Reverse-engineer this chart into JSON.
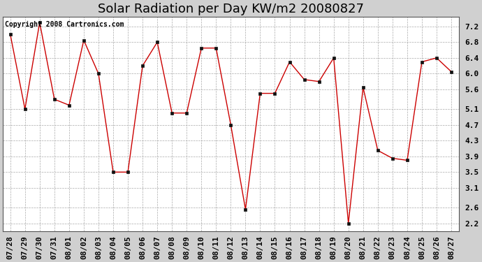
{
  "title": "Solar Radiation per Day KW/m2 20080827",
  "copyright": "Copyright 2008 Cartronics.com",
  "dates": [
    "07/28",
    "07/29",
    "07/30",
    "07/31",
    "08/01",
    "08/02",
    "08/03",
    "08/04",
    "08/05",
    "08/06",
    "08/07",
    "08/08",
    "08/09",
    "08/10",
    "08/11",
    "08/12",
    "08/13",
    "08/14",
    "08/15",
    "08/16",
    "08/17",
    "08/18",
    "08/19",
    "08/20",
    "08/21",
    "08/22",
    "08/23",
    "08/24",
    "08/25",
    "08/26",
    "08/27"
  ],
  "values": [
    7.0,
    5.1,
    7.3,
    5.35,
    5.2,
    6.85,
    6.0,
    3.5,
    3.5,
    6.2,
    6.8,
    5.0,
    5.0,
    6.65,
    6.65,
    4.7,
    2.55,
    5.5,
    5.5,
    6.3,
    5.85,
    5.8,
    6.4,
    2.2,
    5.65,
    4.05,
    3.85,
    3.8,
    6.3,
    6.4,
    6.05
  ],
  "line_color": "#cc0000",
  "marker": "s",
  "marker_size": 2.5,
  "bg_color": "#d0d0d0",
  "plot_bg_color": "#ffffff",
  "grid_color": "#aaaaaa",
  "ylim": [
    2.0,
    7.45
  ],
  "yticks": [
    2.2,
    2.6,
    3.1,
    3.5,
    3.9,
    4.3,
    4.7,
    5.1,
    5.6,
    6.0,
    6.4,
    6.8,
    7.2
  ],
  "ytick_labels": [
    "2.2",
    "2.6",
    "3.1",
    "3.5",
    "3.9",
    "4.3",
    "4.7",
    "5.1",
    "5.6",
    "6.0",
    "6.4",
    "6.8",
    "7.2"
  ],
  "title_fontsize": 13,
  "tick_fontsize": 8,
  "copyright_fontsize": 7
}
